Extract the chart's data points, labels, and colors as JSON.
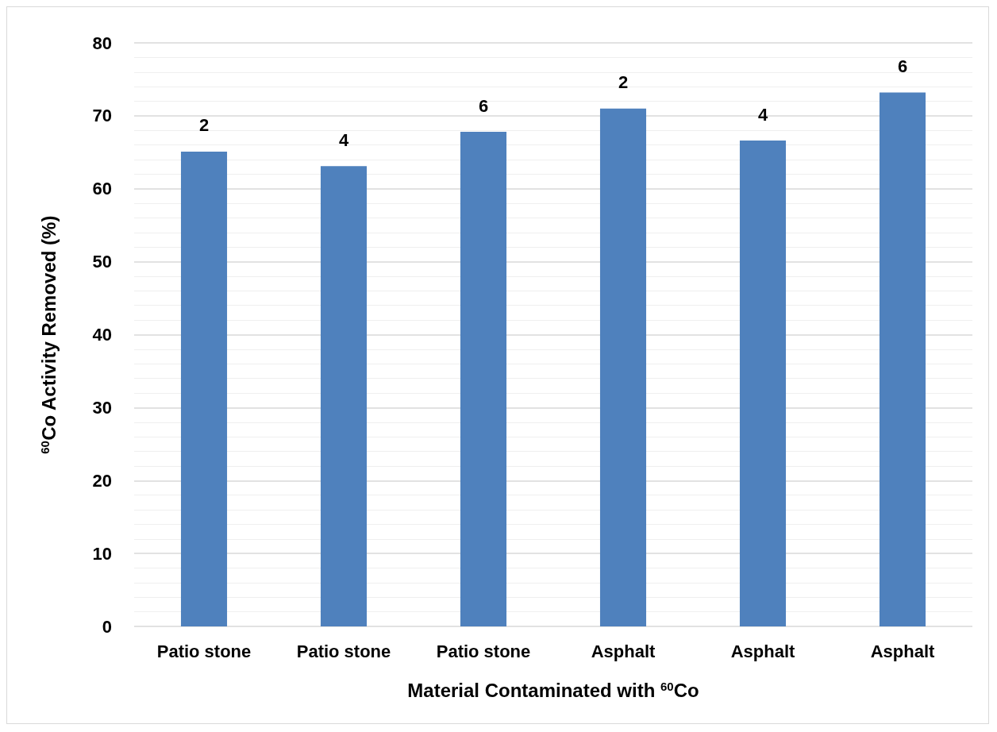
{
  "chart_data": {
    "type": "bar",
    "xlabel": "Material Contaminated with $^{60}$Co",
    "ylabel": "$^{60}$Co Activity Removed (%)",
    "categories": [
      "Patio stone",
      "Patio stone",
      "Patio stone",
      "Asphalt",
      "Asphalt",
      "Asphalt"
    ],
    "values": [
      65.1,
      63.1,
      67.8,
      71.0,
      66.6,
      73.2
    ],
    "annotations": [
      "2",
      "4",
      "6",
      "2",
      "4",
      "6"
    ],
    "color": "#4f81bd",
    "ylim": [
      0,
      80
    ],
    "yticks": [
      0,
      10,
      20,
      30,
      40,
      50,
      60,
      70,
      80
    ],
    "grid": true
  }
}
